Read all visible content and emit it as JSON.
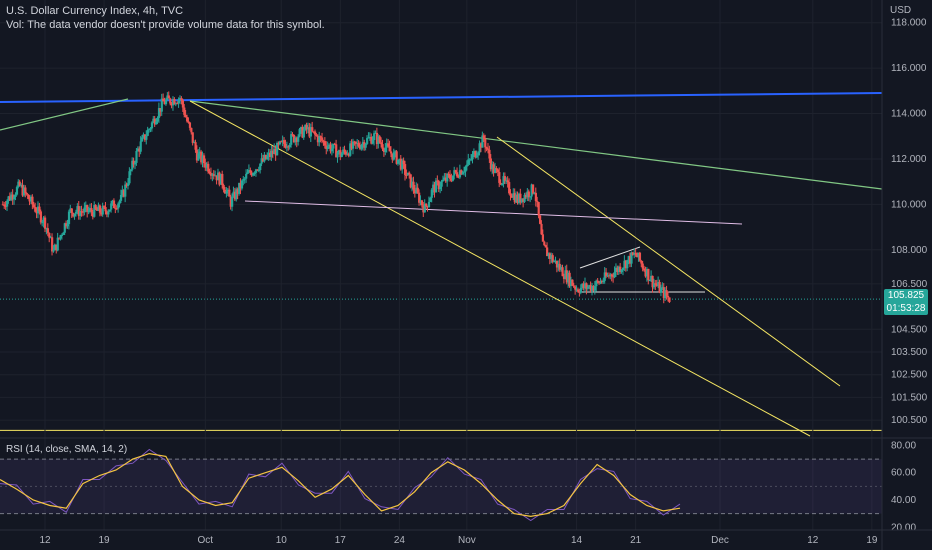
{
  "header": {
    "title": "U.S. Dollar Currency Index, 4h, TVC",
    "vol_note": "Vol: The data vendor doesn't provide volume data for this symbol."
  },
  "price_axis": {
    "currency": "USD",
    "ticks": [
      "118.000",
      "116.000",
      "114.000",
      "112.000",
      "110.000",
      "108.000",
      "106.500",
      "104.500",
      "103.500",
      "102.500",
      "101.500",
      "100.500"
    ]
  },
  "last_price": {
    "value": "105.825",
    "countdown": "01:53:28"
  },
  "rsi": {
    "label": "RSI (14, close, SMA, 14, 2)",
    "ticks": [
      "80.00",
      "60.00",
      "40.00",
      "20.00"
    ]
  },
  "time_axis": [
    "12",
    "19",
    "Oct",
    "10",
    "17",
    "24",
    "Nov",
    "14",
    "21",
    "Dec",
    "12",
    "19"
  ],
  "colors": {
    "background": "#131722",
    "up": "#26a69a",
    "down": "#ef5350",
    "blue_trend": "#2962ff",
    "green_trend": "#81c784",
    "yellow_channel": "#f5e663",
    "pink_line": "#e1bee7",
    "rsi_line": "#7e57c2",
    "rsi_ma": "#f5c542"
  },
  "chart_data": {
    "type": "candlestick",
    "title": "U.S. Dollar Currency Index, 4h, TVC",
    "ylabel": "USD",
    "ylim": [
      99.8,
      119.0
    ],
    "x": [
      "Sep 12",
      "Sep 19",
      "Oct 3",
      "Oct 10",
      "Oct 17",
      "Oct 24",
      "Nov 1",
      "Nov 14",
      "Nov 21",
      "Dec 1",
      "Dec 12",
      "Dec 19"
    ],
    "close_path": [
      {
        "date": "Sep 7",
        "close": 110.0
      },
      {
        "date": "Sep 9",
        "close": 110.8
      },
      {
        "date": "Sep 12",
        "close": 109.2
      },
      {
        "date": "Sep 13",
        "close": 107.9
      },
      {
        "date": "Sep 15",
        "close": 109.7
      },
      {
        "date": "Sep 19",
        "close": 109.7
      },
      {
        "date": "Sep 21",
        "close": 110.2
      },
      {
        "date": "Sep 23",
        "close": 112.4
      },
      {
        "date": "Sep 26",
        "close": 114.5
      },
      {
        "date": "Sep 28",
        "close": 114.7
      },
      {
        "date": "Sep 30",
        "close": 112.2
      },
      {
        "date": "Oct 3",
        "close": 111.0
      },
      {
        "date": "Oct 4",
        "close": 110.1
      },
      {
        "date": "Oct 6",
        "close": 111.3
      },
      {
        "date": "Oct 10",
        "close": 112.6
      },
      {
        "date": "Oct 13",
        "close": 113.3
      },
      {
        "date": "Oct 17",
        "close": 112.2
      },
      {
        "date": "Oct 20",
        "close": 112.8
      },
      {
        "date": "Oct 21",
        "close": 113.0
      },
      {
        "date": "Oct 24",
        "close": 111.9
      },
      {
        "date": "Oct 27",
        "close": 109.8
      },
      {
        "date": "Oct 28",
        "close": 110.7
      },
      {
        "date": "Nov 1",
        "close": 111.7
      },
      {
        "date": "Nov 3",
        "close": 112.9
      },
      {
        "date": "Nov 4",
        "close": 111.6
      },
      {
        "date": "Nov 7",
        "close": 110.2
      },
      {
        "date": "Nov 9",
        "close": 110.7
      },
      {
        "date": "Nov 10",
        "close": 108.1
      },
      {
        "date": "Nov 14",
        "close": 106.3
      },
      {
        "date": "Nov 16",
        "close": 106.4
      },
      {
        "date": "Nov 18",
        "close": 106.9
      },
      {
        "date": "Nov 21",
        "close": 107.8
      },
      {
        "date": "Nov 23",
        "close": 106.6
      },
      {
        "date": "Nov 25",
        "close": 105.825
      }
    ],
    "last": 105.825,
    "rsi": {
      "ylim": [
        18,
        84
      ],
      "bands": [
        30,
        70
      ],
      "values": [
        55,
        48,
        40,
        36,
        34,
        52,
        58,
        62,
        70,
        74,
        72,
        50,
        40,
        36,
        38,
        56,
        60,
        64,
        54,
        42,
        48,
        58,
        44,
        32,
        36,
        46,
        60,
        68,
        62,
        52,
        40,
        30,
        28,
        30,
        36,
        52,
        66,
        58,
        44,
        36,
        32,
        34
      ]
    },
    "trendlines": [
      "blue resistance",
      "green descending",
      "yellow channel upper",
      "yellow channel lower",
      "pink support",
      "rising wedge"
    ]
  }
}
